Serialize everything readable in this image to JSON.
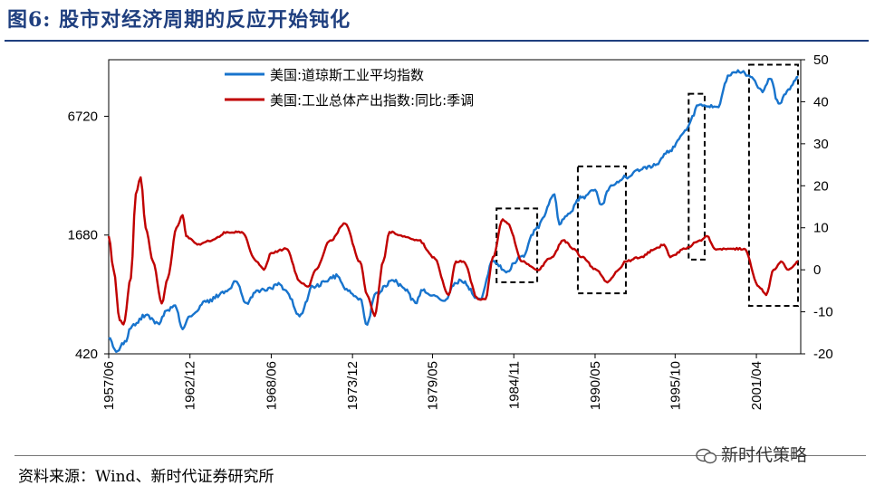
{
  "figure": {
    "title": "图6:  股市对经济周期的反应开始钝化",
    "source": "资料来源：Wind、新时代证券研究所",
    "watermark": "新时代策略"
  },
  "colors": {
    "blue": "#1874cd",
    "red": "#c00000",
    "title": "#1f3f7f"
  },
  "chart_data": {
    "type": "line",
    "x_ticks": [
      "1957/06",
      "1962/12",
      "1968/06",
      "1973/12",
      "1979/05",
      "1984/11",
      "1990/05",
      "1995/10",
      "2001/04"
    ],
    "y_left_ticks": [
      "420",
      "1680",
      "6720"
    ],
    "y_left_scale": "log",
    "y_left_lim": [
      420,
      13000
    ],
    "y_right_ticks": [
      "-20",
      "-10",
      "0",
      "10",
      "20",
      "30",
      "40",
      "50"
    ],
    "y_right_lim": [
      -20,
      50
    ],
    "legend_position": "top",
    "series": [
      {
        "name": "美国:道琼斯工业平均指数",
        "axis": "left",
        "color": "#1874cd",
        "points": [
          [
            "1957/06",
            500
          ],
          [
            "1957/12",
            430
          ],
          [
            "1958/06",
            470
          ],
          [
            "1959/01",
            580
          ],
          [
            "1959/12",
            660
          ],
          [
            "1960/10",
            600
          ],
          [
            "1961/06",
            700
          ],
          [
            "1961/12",
            740
          ],
          [
            "1962/06",
            560
          ],
          [
            "1962/12",
            650
          ],
          [
            "1964/01",
            770
          ],
          [
            "1965/06",
            870
          ],
          [
            "1966/01",
            980
          ],
          [
            "1966/10",
            760
          ],
          [
            "1967/06",
            880
          ],
          [
            "1968/06",
            900
          ],
          [
            "1968/12",
            960
          ],
          [
            "1969/06",
            880
          ],
          [
            "1970/05",
            650
          ],
          [
            "1971/04",
            920
          ],
          [
            "1972/12",
            1040
          ],
          [
            "1973/06",
            890
          ],
          [
            "1974/06",
            800
          ],
          [
            "1974/12",
            590
          ],
          [
            "1975/06",
            840
          ],
          [
            "1976/09",
            990
          ],
          [
            "1977/06",
            900
          ],
          [
            "1978/03",
            760
          ],
          [
            "1978/09",
            880
          ],
          [
            "1979/05",
            830
          ],
          [
            "1980/03",
            780
          ],
          [
            "1980/11",
            960
          ],
          [
            "1981/04",
            990
          ],
          [
            "1982/08",
            790
          ],
          [
            "1983/06",
            1240
          ],
          [
            "1984/06",
            1100
          ],
          [
            "1984/11",
            1210
          ],
          [
            "1985/06",
            1320
          ],
          [
            "1986/06",
            1850
          ],
          [
            "1987/08",
            2700
          ],
          [
            "1987/12",
            1900
          ],
          [
            "1988/06",
            2100
          ],
          [
            "1989/06",
            2600
          ],
          [
            "1990/05",
            2850
          ],
          [
            "1990/10",
            2400
          ],
          [
            "1991/06",
            3000
          ],
          [
            "1992/06",
            3300
          ],
          [
            "1993/06",
            3600
          ],
          [
            "1994/06",
            3800
          ],
          [
            "1995/06",
            4500
          ],
          [
            "1996/06",
            5700
          ],
          [
            "1997/06",
            7700
          ],
          [
            "1998/08",
            7500
          ],
          [
            "1999/06",
            10800
          ],
          [
            "2000/01",
            11500
          ],
          [
            "2000/10",
            10800
          ],
          [
            "2001/09",
            8900
          ],
          [
            "2002/03",
            10400
          ],
          [
            "2002/10",
            7800
          ],
          [
            "2003/06",
            9200
          ],
          [
            "2004/02",
            10600
          ]
        ]
      },
      {
        "name": "美国:工业总体产出指数:同比:季调",
        "axis": "right",
        "color": "#c00000",
        "points": [
          [
            "1957/06",
            8
          ],
          [
            "1957/10",
            0
          ],
          [
            "1958/03",
            -12
          ],
          [
            "1958/06",
            -13
          ],
          [
            "1958/12",
            -2
          ],
          [
            "1959/04",
            18
          ],
          [
            "1959/08",
            22
          ],
          [
            "1959/12",
            10
          ],
          [
            "1960/06",
            2
          ],
          [
            "1961/01",
            -8
          ],
          [
            "1961/06",
            -2
          ],
          [
            "1962/01",
            10
          ],
          [
            "1962/06",
            13
          ],
          [
            "1962/09",
            8
          ],
          [
            "1963/06",
            6
          ],
          [
            "1964/06",
            7
          ],
          [
            "1965/06",
            9
          ],
          [
            "1966/06",
            9
          ],
          [
            "1967/06",
            2
          ],
          [
            "1967/12",
            0
          ],
          [
            "1968/06",
            4
          ],
          [
            "1969/06",
            5
          ],
          [
            "1970/06",
            -3
          ],
          [
            "1970/12",
            -4
          ],
          [
            "1971/06",
            0
          ],
          [
            "1972/06",
            7
          ],
          [
            "1973/06",
            11
          ],
          [
            "1974/06",
            2
          ],
          [
            "1974/12",
            -6
          ],
          [
            "1975/06",
            -11
          ],
          [
            "1976/01",
            2
          ],
          [
            "1976/06",
            9
          ],
          [
            "1977/06",
            8
          ],
          [
            "1978/06",
            7
          ],
          [
            "1979/06",
            3
          ],
          [
            "1980/06",
            -6
          ],
          [
            "1980/12",
            2
          ],
          [
            "1981/06",
            2
          ],
          [
            "1982/06",
            -7
          ],
          [
            "1982/12",
            -7
          ],
          [
            "1983/06",
            3
          ],
          [
            "1984/02",
            12
          ],
          [
            "1984/06",
            11
          ],
          [
            "1985/06",
            2
          ],
          [
            "1986/06",
            0
          ],
          [
            "1987/06",
            3
          ],
          [
            "1988/03",
            7
          ],
          [
            "1988/12",
            5
          ],
          [
            "1989/06",
            3
          ],
          [
            "1990/06",
            0
          ],
          [
            "1991/03",
            -3
          ],
          [
            "1991/12",
            0
          ],
          [
            "1992/06",
            2
          ],
          [
            "1993/06",
            3
          ],
          [
            "1994/06",
            5
          ],
          [
            "1995/01",
            6
          ],
          [
            "1995/06",
            3
          ],
          [
            "1996/06",
            5
          ],
          [
            "1997/06",
            7
          ],
          [
            "1997/12",
            8
          ],
          [
            "1998/06",
            5
          ],
          [
            "1999/06",
            5
          ],
          [
            "2000/06",
            5
          ],
          [
            "2001/06",
            -4
          ],
          [
            "2001/12",
            -6
          ],
          [
            "2002/06",
            0
          ],
          [
            "2002/12",
            2
          ],
          [
            "2003/06",
            0
          ],
          [
            "2004/02",
            2
          ]
        ]
      }
    ],
    "annotations": {
      "type": "dashed-rectangles",
      "periods": [
        [
          "1983/09",
          "1986/06"
        ],
        [
          "1989/03",
          "1992/06"
        ],
        [
          "1996/09",
          "1997/10"
        ],
        [
          "2000/10",
          "2004/10"
        ]
      ]
    }
  }
}
